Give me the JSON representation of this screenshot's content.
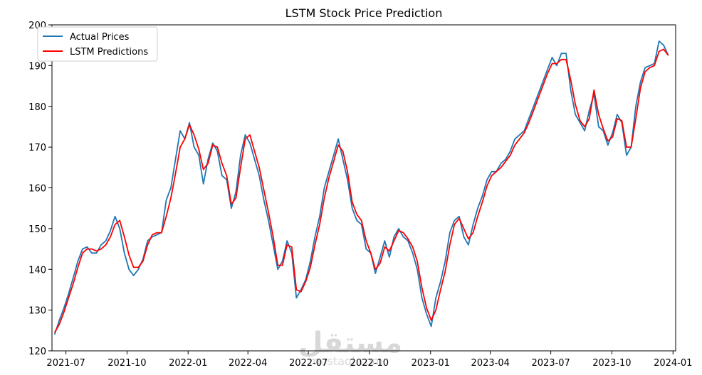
{
  "watermark": {
    "arabic": "مستقل",
    "latin": "mostaql.com"
  },
  "chart_data": {
    "type": "line",
    "title": "LSTM Stock Price Prediction",
    "xlabel": "",
    "ylabel": "",
    "x_range": [
      "2021-06-10",
      "2024-01-05"
    ],
    "ylim": [
      120,
      200
    ],
    "x_ticks": [
      "2021-07",
      "2021-10",
      "2022-01",
      "2022-04",
      "2022-07",
      "2022-10",
      "2023-01",
      "2023-04",
      "2023-07",
      "2023-10",
      "2024-01"
    ],
    "y_ticks": [
      120,
      130,
      140,
      150,
      160,
      170,
      180,
      190,
      200
    ],
    "grid": false,
    "legend_position": "top-left",
    "series": [
      {
        "name": "Actual Prices",
        "color": "#1f77b4",
        "points": [
          [
            "2021-06-14",
            124.0
          ],
          [
            "2021-06-21",
            127.5
          ],
          [
            "2021-06-28",
            130.5
          ],
          [
            "2021-07-05",
            134.0
          ],
          [
            "2021-07-12",
            138.0
          ],
          [
            "2021-07-19",
            142.0
          ],
          [
            "2021-07-26",
            145.0
          ],
          [
            "2021-08-02",
            145.5
          ],
          [
            "2021-08-09",
            144.0
          ],
          [
            "2021-08-16",
            144.0
          ],
          [
            "2021-08-23",
            146.0
          ],
          [
            "2021-08-30",
            147.0
          ],
          [
            "2021-09-06",
            149.5
          ],
          [
            "2021-09-13",
            153.0
          ],
          [
            "2021-09-20",
            150.0
          ],
          [
            "2021-09-27",
            144.0
          ],
          [
            "2021-10-04",
            140.0
          ],
          [
            "2021-10-11",
            138.5
          ],
          [
            "2021-10-18",
            140.0
          ],
          [
            "2021-10-25",
            142.5
          ],
          [
            "2021-11-01",
            147.0
          ],
          [
            "2021-11-08",
            148.0
          ],
          [
            "2021-11-15",
            148.5
          ],
          [
            "2021-11-22",
            149.0
          ],
          [
            "2021-11-29",
            157.0
          ],
          [
            "2021-12-06",
            160.0
          ],
          [
            "2021-12-13",
            167.0
          ],
          [
            "2021-12-20",
            174.0
          ],
          [
            "2021-12-27",
            172.0
          ],
          [
            "2022-01-03",
            176.0
          ],
          [
            "2022-01-10",
            170.0
          ],
          [
            "2022-01-17",
            168.0
          ],
          [
            "2022-01-24",
            161.0
          ],
          [
            "2022-01-31",
            167.0
          ],
          [
            "2022-02-07",
            171.0
          ],
          [
            "2022-02-14",
            169.0
          ],
          [
            "2022-02-21",
            163.0
          ],
          [
            "2022-02-28",
            162.0
          ],
          [
            "2022-03-07",
            155.0
          ],
          [
            "2022-03-14",
            159.0
          ],
          [
            "2022-03-21",
            168.0
          ],
          [
            "2022-03-28",
            173.0
          ],
          [
            "2022-04-04",
            171.0
          ],
          [
            "2022-04-11",
            167.0
          ],
          [
            "2022-04-18",
            163.0
          ],
          [
            "2022-04-25",
            157.0
          ],
          [
            "2022-05-02",
            152.0
          ],
          [
            "2022-05-09",
            146.0
          ],
          [
            "2022-05-16",
            140.0
          ],
          [
            "2022-05-23",
            142.0
          ],
          [
            "2022-05-30",
            147.0
          ],
          [
            "2022-06-06",
            144.0
          ],
          [
            "2022-06-13",
            133.0
          ],
          [
            "2022-06-20",
            135.0
          ],
          [
            "2022-06-27",
            137.5
          ],
          [
            "2022-07-04",
            142.0
          ],
          [
            "2022-07-11",
            148.0
          ],
          [
            "2022-07-18",
            153.0
          ],
          [
            "2022-07-25",
            160.0
          ],
          [
            "2022-08-01",
            164.0
          ],
          [
            "2022-08-08",
            168.0
          ],
          [
            "2022-08-15",
            172.0
          ],
          [
            "2022-08-22",
            167.0
          ],
          [
            "2022-08-29",
            162.0
          ],
          [
            "2022-09-05",
            155.0
          ],
          [
            "2022-09-12",
            152.0
          ],
          [
            "2022-09-19",
            151.0
          ],
          [
            "2022-09-26",
            145.0
          ],
          [
            "2022-10-03",
            144.0
          ],
          [
            "2022-10-10",
            139.0
          ],
          [
            "2022-10-17",
            143.0
          ],
          [
            "2022-10-24",
            147.0
          ],
          [
            "2022-10-31",
            143.0
          ],
          [
            "2022-11-07",
            148.0
          ],
          [
            "2022-11-14",
            150.0
          ],
          [
            "2022-11-21",
            148.0
          ],
          [
            "2022-11-28",
            147.0
          ],
          [
            "2022-12-05",
            144.0
          ],
          [
            "2022-12-12",
            140.0
          ],
          [
            "2022-12-19",
            133.0
          ],
          [
            "2022-12-26",
            129.0
          ],
          [
            "2023-01-02",
            126.0
          ],
          [
            "2023-01-09",
            133.0
          ],
          [
            "2023-01-16",
            137.0
          ],
          [
            "2023-01-23",
            142.0
          ],
          [
            "2023-01-30",
            149.0
          ],
          [
            "2023-02-06",
            152.0
          ],
          [
            "2023-02-13",
            153.0
          ],
          [
            "2023-02-20",
            148.0
          ],
          [
            "2023-02-27",
            146.0
          ],
          [
            "2023-03-06",
            151.0
          ],
          [
            "2023-03-13",
            155.0
          ],
          [
            "2023-03-20",
            158.0
          ],
          [
            "2023-03-27",
            162.0
          ],
          [
            "2023-04-03",
            164.0
          ],
          [
            "2023-04-10",
            164.0
          ],
          [
            "2023-04-17",
            166.0
          ],
          [
            "2023-04-24",
            167.0
          ],
          [
            "2023-05-01",
            169.0
          ],
          [
            "2023-05-08",
            172.0
          ],
          [
            "2023-05-15",
            173.0
          ],
          [
            "2023-05-22",
            174.0
          ],
          [
            "2023-05-29",
            177.0
          ],
          [
            "2023-06-05",
            180.0
          ],
          [
            "2023-06-12",
            183.0
          ],
          [
            "2023-06-19",
            186.0
          ],
          [
            "2023-06-26",
            189.0
          ],
          [
            "2023-07-03",
            192.0
          ],
          [
            "2023-07-10",
            190.0
          ],
          [
            "2023-07-17",
            193.0
          ],
          [
            "2023-07-24",
            193.0
          ],
          [
            "2023-07-31",
            184.0
          ],
          [
            "2023-08-07",
            178.0
          ],
          [
            "2023-08-14",
            176.0
          ],
          [
            "2023-08-21",
            174.0
          ],
          [
            "2023-08-28",
            179.0
          ],
          [
            "2023-09-04",
            183.0
          ],
          [
            "2023-09-11",
            175.0
          ],
          [
            "2023-09-18",
            174.0
          ],
          [
            "2023-09-25",
            170.5
          ],
          [
            "2023-10-02",
            173.5
          ],
          [
            "2023-10-09",
            178.0
          ],
          [
            "2023-10-16",
            176.0
          ],
          [
            "2023-10-23",
            168.0
          ],
          [
            "2023-10-30",
            170.0
          ],
          [
            "2023-11-06",
            180.0
          ],
          [
            "2023-11-13",
            186.0
          ],
          [
            "2023-11-20",
            189.5
          ],
          [
            "2023-11-27",
            190.0
          ],
          [
            "2023-12-04",
            190.5
          ],
          [
            "2023-12-11",
            196.0
          ],
          [
            "2023-12-18",
            195.0
          ],
          [
            "2023-12-25",
            192.5
          ]
        ]
      },
      {
        "name": "LSTM Predictions",
        "color": "#ff0000",
        "points": [
          [
            "2021-06-14",
            124.5
          ],
          [
            "2021-06-21",
            126.5
          ],
          [
            "2021-06-28",
            129.5
          ],
          [
            "2021-07-05",
            133.0
          ],
          [
            "2021-07-12",
            136.5
          ],
          [
            "2021-07-19",
            140.5
          ],
          [
            "2021-07-26",
            144.0
          ],
          [
            "2021-08-02",
            145.0
          ],
          [
            "2021-08-09",
            145.0
          ],
          [
            "2021-08-16",
            144.5
          ],
          [
            "2021-08-23",
            145.0
          ],
          [
            "2021-08-30",
            146.0
          ],
          [
            "2021-09-06",
            148.0
          ],
          [
            "2021-09-13",
            151.0
          ],
          [
            "2021-09-20",
            152.0
          ],
          [
            "2021-09-27",
            148.0
          ],
          [
            "2021-10-04",
            143.5
          ],
          [
            "2021-10-11",
            140.5
          ],
          [
            "2021-10-18",
            140.5
          ],
          [
            "2021-10-25",
            142.0
          ],
          [
            "2021-11-01",
            146.0
          ],
          [
            "2021-11-08",
            148.5
          ],
          [
            "2021-11-15",
            149.0
          ],
          [
            "2021-11-22",
            149.0
          ],
          [
            "2021-11-29",
            153.0
          ],
          [
            "2021-12-06",
            157.5
          ],
          [
            "2021-12-13",
            163.5
          ],
          [
            "2021-12-20",
            170.0
          ],
          [
            "2021-12-27",
            172.0
          ],
          [
            "2022-01-03",
            175.5
          ],
          [
            "2022-01-10",
            173.0
          ],
          [
            "2022-01-17",
            169.5
          ],
          [
            "2022-01-24",
            164.5
          ],
          [
            "2022-01-31",
            166.0
          ],
          [
            "2022-02-07",
            170.5
          ],
          [
            "2022-02-14",
            170.0
          ],
          [
            "2022-02-21",
            166.0
          ],
          [
            "2022-02-28",
            163.0
          ],
          [
            "2022-03-07",
            156.0
          ],
          [
            "2022-03-14",
            157.5
          ],
          [
            "2022-03-21",
            165.0
          ],
          [
            "2022-03-28",
            172.0
          ],
          [
            "2022-04-04",
            173.0
          ],
          [
            "2022-04-11",
            169.0
          ],
          [
            "2022-04-18",
            165.0
          ],
          [
            "2022-04-25",
            159.5
          ],
          [
            "2022-05-02",
            154.0
          ],
          [
            "2022-05-09",
            148.0
          ],
          [
            "2022-05-16",
            141.0
          ],
          [
            "2022-05-23",
            141.0
          ],
          [
            "2022-05-30",
            146.0
          ],
          [
            "2022-06-06",
            145.5
          ],
          [
            "2022-06-13",
            135.0
          ],
          [
            "2022-06-20",
            134.5
          ],
          [
            "2022-06-27",
            137.0
          ],
          [
            "2022-07-04",
            140.5
          ],
          [
            "2022-07-11",
            146.0
          ],
          [
            "2022-07-18",
            151.0
          ],
          [
            "2022-07-25",
            157.5
          ],
          [
            "2022-08-01",
            162.5
          ],
          [
            "2022-08-08",
            166.5
          ],
          [
            "2022-08-15",
            170.5
          ],
          [
            "2022-08-22",
            169.0
          ],
          [
            "2022-08-29",
            164.0
          ],
          [
            "2022-09-05",
            156.5
          ],
          [
            "2022-09-12",
            153.5
          ],
          [
            "2022-09-19",
            152.0
          ],
          [
            "2022-09-26",
            147.0
          ],
          [
            "2022-10-03",
            144.0
          ],
          [
            "2022-10-10",
            140.0
          ],
          [
            "2022-10-17",
            141.5
          ],
          [
            "2022-10-24",
            145.5
          ],
          [
            "2022-10-31",
            144.5
          ],
          [
            "2022-11-07",
            147.0
          ],
          [
            "2022-11-14",
            149.5
          ],
          [
            "2022-11-21",
            149.0
          ],
          [
            "2022-11-28",
            147.5
          ],
          [
            "2022-12-05",
            145.5
          ],
          [
            "2022-12-12",
            142.0
          ],
          [
            "2022-12-19",
            135.5
          ],
          [
            "2022-12-26",
            130.5
          ],
          [
            "2023-01-02",
            127.5
          ],
          [
            "2023-01-09",
            130.0
          ],
          [
            "2023-01-16",
            135.0
          ],
          [
            "2023-01-23",
            139.5
          ],
          [
            "2023-01-30",
            146.0
          ],
          [
            "2023-02-06",
            151.0
          ],
          [
            "2023-02-13",
            152.5
          ],
          [
            "2023-02-20",
            150.0
          ],
          [
            "2023-02-27",
            147.5
          ],
          [
            "2023-03-06",
            149.0
          ],
          [
            "2023-03-13",
            153.0
          ],
          [
            "2023-03-20",
            156.5
          ],
          [
            "2023-03-27",
            160.5
          ],
          [
            "2023-04-03",
            163.0
          ],
          [
            "2023-04-10",
            164.0
          ],
          [
            "2023-04-17",
            165.0
          ],
          [
            "2023-04-24",
            166.5
          ],
          [
            "2023-05-01",
            168.0
          ],
          [
            "2023-05-08",
            170.5
          ],
          [
            "2023-05-15",
            172.0
          ],
          [
            "2023-05-22",
            173.5
          ],
          [
            "2023-05-29",
            176.0
          ],
          [
            "2023-06-05",
            179.0
          ],
          [
            "2023-06-12",
            182.0
          ],
          [
            "2023-06-19",
            185.0
          ],
          [
            "2023-06-26",
            188.0
          ],
          [
            "2023-07-03",
            190.5
          ],
          [
            "2023-07-10",
            190.5
          ],
          [
            "2023-07-17",
            191.5
          ],
          [
            "2023-07-24",
            191.5
          ],
          [
            "2023-07-31",
            186.5
          ],
          [
            "2023-08-07",
            180.5
          ],
          [
            "2023-08-14",
            176.5
          ],
          [
            "2023-08-21",
            175.0
          ],
          [
            "2023-08-28",
            177.0
          ],
          [
            "2023-09-04",
            184.0
          ],
          [
            "2023-09-11",
            178.0
          ],
          [
            "2023-09-18",
            174.5
          ],
          [
            "2023-09-25",
            171.5
          ],
          [
            "2023-10-02",
            172.5
          ],
          [
            "2023-10-09",
            177.0
          ],
          [
            "2023-10-16",
            176.5
          ],
          [
            "2023-10-23",
            170.0
          ],
          [
            "2023-10-30",
            170.0
          ],
          [
            "2023-11-06",
            177.0
          ],
          [
            "2023-11-13",
            184.5
          ],
          [
            "2023-11-20",
            188.5
          ],
          [
            "2023-11-27",
            189.5
          ],
          [
            "2023-12-04",
            190.0
          ],
          [
            "2023-12-11",
            193.5
          ],
          [
            "2023-12-18",
            194.0
          ],
          [
            "2023-12-25",
            192.5
          ]
        ]
      }
    ]
  }
}
